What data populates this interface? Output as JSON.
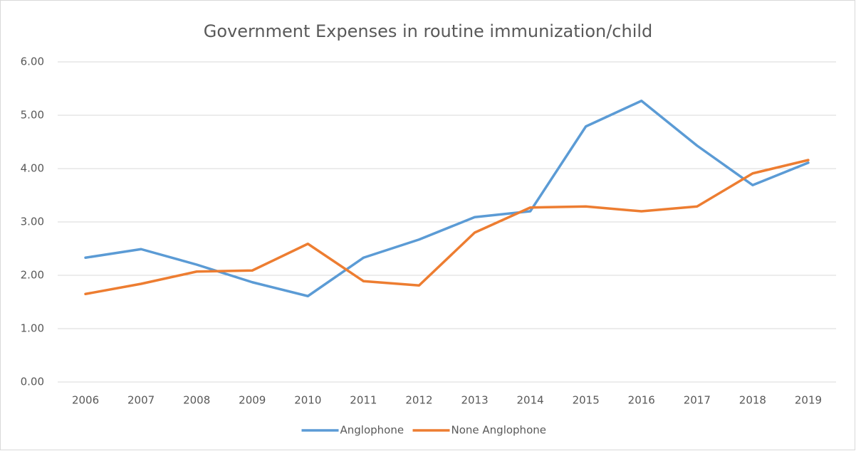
{
  "chart_data": {
    "type": "line",
    "title": "Government Expenses in  routine  immunization/child",
    "categories": [
      "2006",
      "2007",
      "2008",
      "2009",
      "2010",
      "2011",
      "2012",
      "2013",
      "2014",
      "2015",
      "2016",
      "2017",
      "2018",
      "2019"
    ],
    "series": [
      {
        "name": "Anglophone",
        "color": "#5b9bd5",
        "values": [
          2.33,
          2.49,
          2.2,
          1.87,
          1.61,
          2.33,
          2.67,
          3.09,
          3.2,
          4.79,
          5.27,
          4.43,
          3.69,
          4.11
        ]
      },
      {
        "name": "None Anglophone",
        "color": "#ed7d31",
        "values": [
          1.65,
          1.84,
          2.07,
          2.09,
          2.59,
          1.89,
          1.81,
          2.8,
          3.27,
          3.29,
          3.2,
          3.29,
          3.91,
          4.16
        ]
      }
    ],
    "ylim": [
      0,
      6
    ],
    "yticks": [
      {
        "value": 0,
        "label": "0.00"
      },
      {
        "value": 1,
        "label": "1.00"
      },
      {
        "value": 2,
        "label": "2.00"
      },
      {
        "value": 3,
        "label": "3.00"
      },
      {
        "value": 4,
        "label": "4.00"
      },
      {
        "value": 5,
        "label": "5.00"
      },
      {
        "value": 6,
        "label": "6.00"
      }
    ],
    "grid": true,
    "legend": "bottom"
  }
}
